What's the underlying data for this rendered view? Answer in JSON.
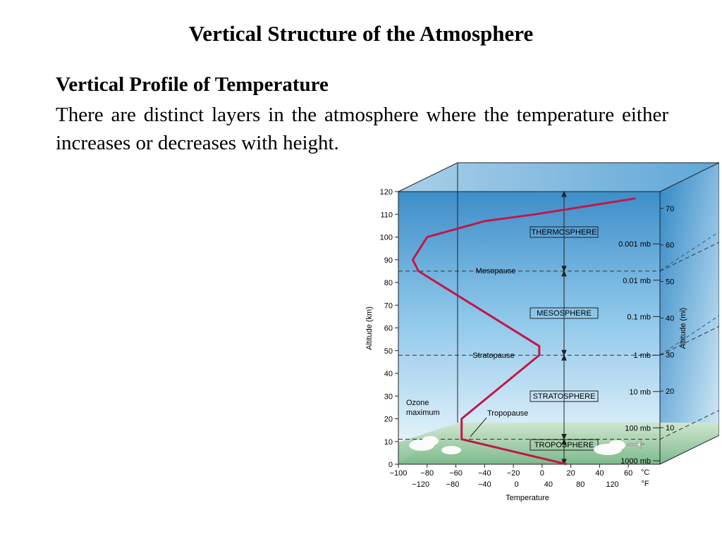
{
  "slide": {
    "title": "Vertical Structure of the Atmosphere",
    "heading": "Vertical Profile of Temperature",
    "body": "There are distinct layers in the atmosphere where the temperature either increases or decreases with height."
  },
  "diagram": {
    "layers": [
      "THERMOSPHERE",
      "MESOSPHERE",
      "STRATOSPHERE",
      "TROPOSPHERE"
    ],
    "boundaries": [
      {
        "label": "Mesopause",
        "altitude_km": 85
      },
      {
        "label": "Stratopause",
        "altitude_km": 48
      },
      {
        "label": "Tropopause",
        "altitude_km": 11
      }
    ],
    "ozone_label": [
      "Ozone",
      "maximum"
    ],
    "axes": {
      "left_title": "Altitude (km)",
      "right_title": "Altitude (mi)",
      "bottom_title": "Temperature",
      "unit_c": "°C",
      "unit_f": "°F",
      "km_ticks": [
        "0",
        "10",
        "20",
        "30",
        "40",
        "50",
        "60",
        "70",
        "80",
        "90",
        "100",
        "110",
        "120"
      ],
      "mi_ticks": [
        "10",
        "20",
        "30",
        "40",
        "50",
        "60",
        "70"
      ],
      "c_ticks": [
        "−100",
        "−80",
        "−60",
        "−40",
        "−20",
        "0",
        "20",
        "40",
        "60"
      ],
      "f_ticks": [
        "−120",
        "−80",
        "−40",
        "0",
        "40",
        "80",
        "120"
      ]
    },
    "pressure_labels": [
      "0.001 mb",
      "0.01 mb",
      "0.1 mb",
      "1 mb",
      "10 mb",
      "100 mb",
      "1000 mb"
    ],
    "temperature_profile": {
      "x_unit": "°C",
      "y_unit": "km",
      "points": [
        [
          17,
          0
        ],
        [
          -56,
          11
        ],
        [
          -56,
          20
        ],
        [
          -2,
          48
        ],
        [
          -2,
          52
        ],
        [
          -86,
          85
        ],
        [
          -90,
          90
        ],
        [
          -80,
          100
        ],
        [
          -40,
          107
        ],
        [
          -5,
          110
        ],
        [
          65,
          117
        ]
      ]
    },
    "colors": {
      "profile_line": "#c0184a",
      "sky_top": "#5aa9dc",
      "sky_bottom": "#eaf6fc",
      "ground": "#8fc49a"
    }
  }
}
